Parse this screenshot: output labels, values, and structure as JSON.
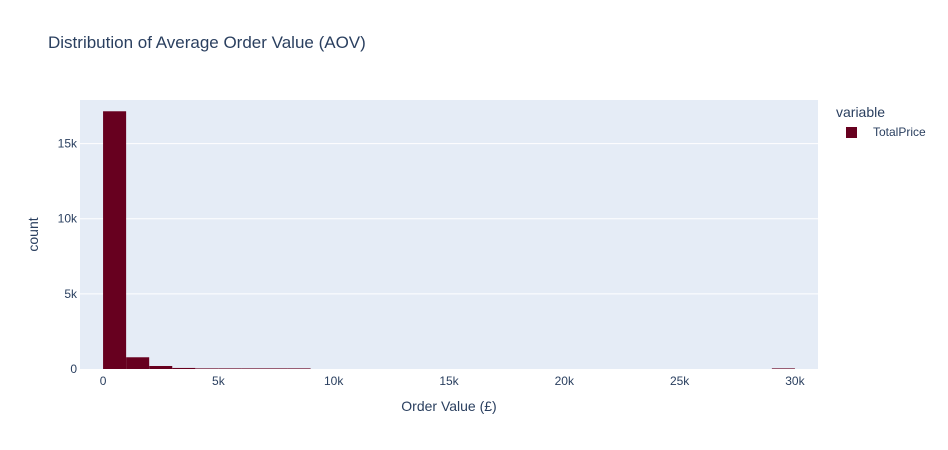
{
  "chart_data": {
    "type": "bar",
    "title": "Distribution of Average Order Value (AOV)",
    "xlabel": "Order Value (£)",
    "ylabel": "count",
    "xlim": [
      -1000,
      31000
    ],
    "ylim": [
      0,
      17900
    ],
    "x_ticks": [
      0,
      5000,
      10000,
      15000,
      20000,
      25000,
      30000
    ],
    "x_tick_labels": [
      "0",
      "5k",
      "10k",
      "15k",
      "20k",
      "25k",
      "30k"
    ],
    "y_ticks": [
      0,
      5000,
      10000,
      15000
    ],
    "y_tick_labels": [
      "0",
      "5k",
      "10k",
      "15k"
    ],
    "grid": true,
    "legend_position": "top-right",
    "legend_title": "variable",
    "bin_width": 1000,
    "series": [
      {
        "name": "TotalPrice",
        "color": "#67001f",
        "bins": [
          {
            "start": 0,
            "end": 1000,
            "count": 17150
          },
          {
            "start": 1000,
            "end": 2000,
            "count": 780
          },
          {
            "start": 2000,
            "end": 3000,
            "count": 200
          },
          {
            "start": 3000,
            "end": 4000,
            "count": 70
          },
          {
            "start": 4000,
            "end": 5000,
            "count": 40
          },
          {
            "start": 5000,
            "end": 6000,
            "count": 8
          },
          {
            "start": 6000,
            "end": 7000,
            "count": 4
          },
          {
            "start": 7000,
            "end": 8000,
            "count": 2
          },
          {
            "start": 8000,
            "end": 9000,
            "count": 1
          },
          {
            "start": 29000,
            "end": 30000,
            "count": 1
          }
        ]
      }
    ]
  },
  "colors": {
    "plot_bg": "#e5ecf6",
    "grid": "#ffffff",
    "text": "#2a3f5f",
    "tick_text": "#506784"
  }
}
